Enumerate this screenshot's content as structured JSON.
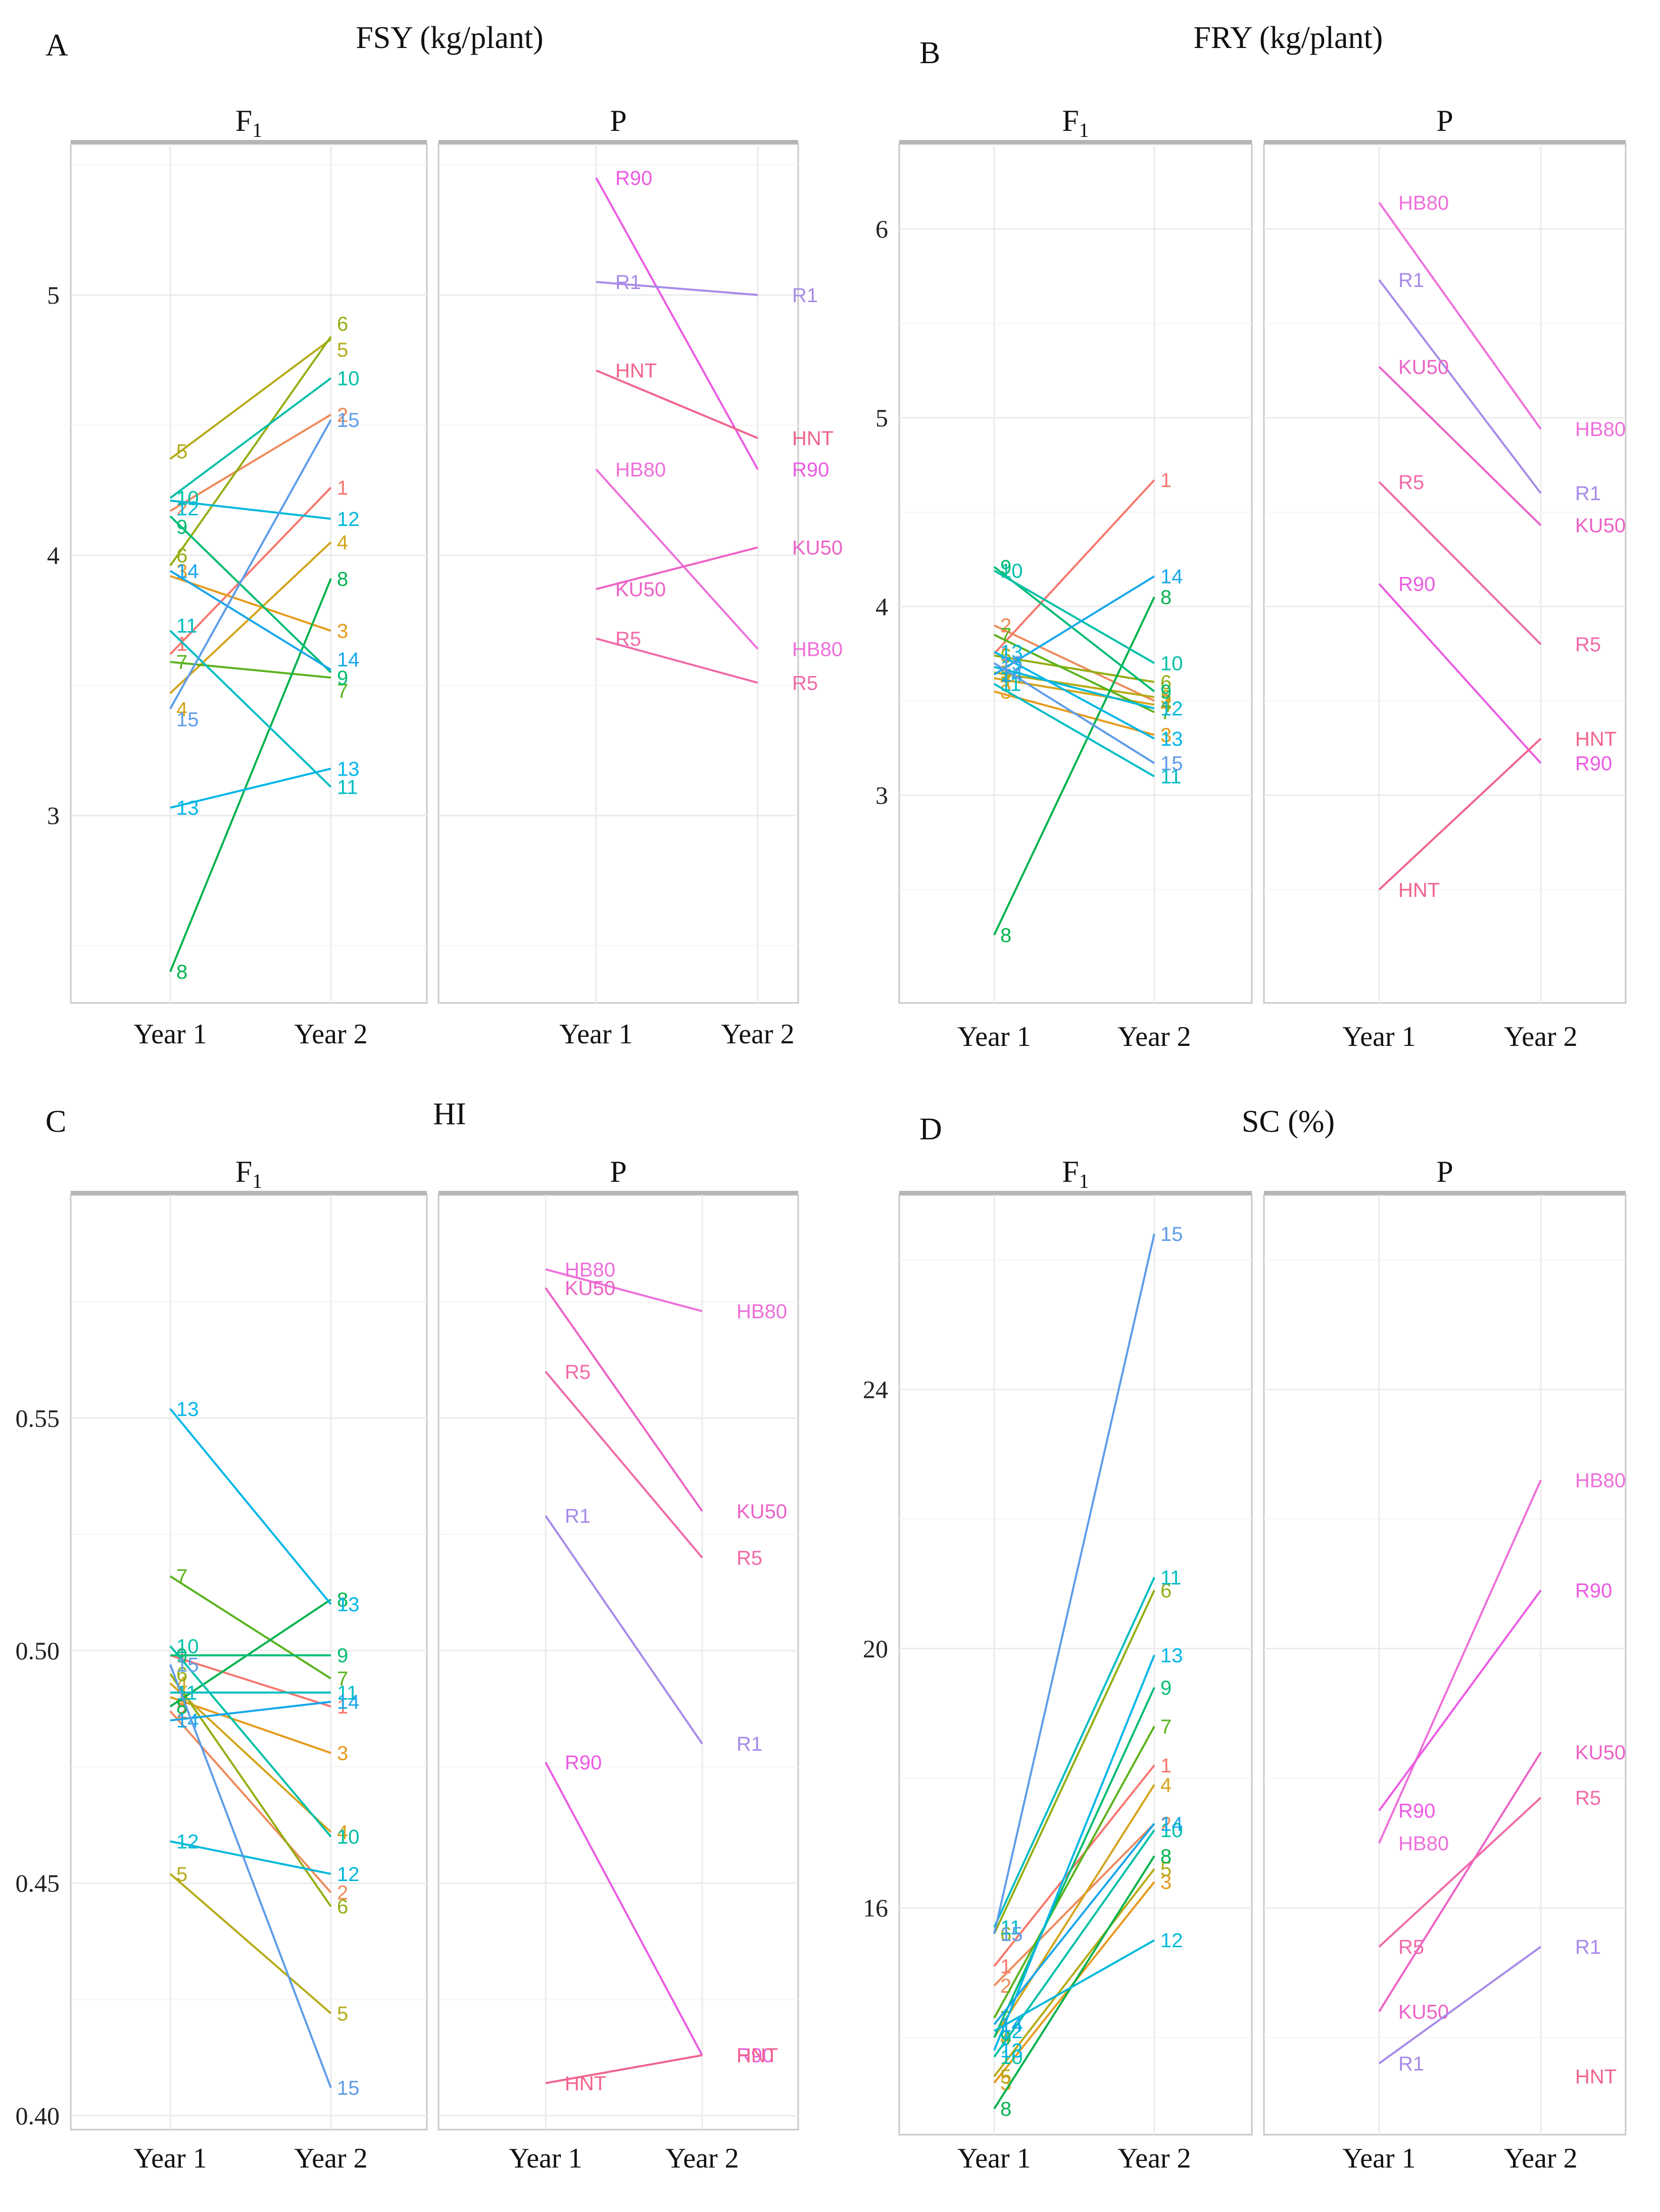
{
  "years": [
    "Year 1",
    "Year 2"
  ],
  "colors": {
    "parent_R90": "#EB5BE2",
    "parent_R1": "#A78AE8",
    "parent_HNT": "#F0648C",
    "parent_HB80": "#EE6FD9",
    "parent_KU50": "#EC62C6",
    "parent_R5": "#F06AA8",
    "gridline": "#EBEBEB",
    "strip": "#B5B5B5",
    "panel_border": "#C8C8C8"
  },
  "f1_colors": {
    "1": "#F8766D",
    "2": "#EF8A5C",
    "3": "#E69A1C",
    "4": "#D3A41B",
    "5": "#B5AA17",
    "6": "#93AE12",
    "7": "#5AB31E",
    "8": "#00B24C",
    "9": "#00BC73",
    "10": "#00C0A7",
    "11": "#00BDC4",
    "12": "#00B9DA",
    "13": "#00B6E9",
    "14": "#17A7EC",
    "15": "#5E9CE8"
  },
  "chart_data": [
    {
      "type": "line",
      "panel_letter": "A",
      "title": "FSY (kg/plant)",
      "facets": {
        "f1": "F1",
        "p": "P"
      },
      "yticks": [
        "3",
        "4",
        "5"
      ],
      "ylim": [
        2.28,
        5.58
      ],
      "series_f1": [
        {
          "name": "1",
          "values": [
            3.62,
            4.26
          ]
        },
        {
          "name": "2",
          "values": [
            4.17,
            4.54
          ]
        },
        {
          "name": "3",
          "values": [
            3.92,
            3.71
          ]
        },
        {
          "name": "4",
          "values": [
            3.47,
            4.05
          ]
        },
        {
          "name": "5",
          "values": [
            4.37,
            4.83
          ]
        },
        {
          "name": "6",
          "values": [
            3.96,
            4.84
          ]
        },
        {
          "name": "7",
          "values": [
            3.59,
            3.53
          ]
        },
        {
          "name": "8",
          "values": [
            2.4,
            3.91
          ]
        },
        {
          "name": "9",
          "values": [
            4.15,
            3.55
          ]
        },
        {
          "name": "10",
          "values": [
            4.22,
            4.68
          ]
        },
        {
          "name": "11",
          "values": [
            3.71,
            3.11
          ]
        },
        {
          "name": "12",
          "values": [
            4.21,
            4.14
          ]
        },
        {
          "name": "13",
          "values": [
            3.03,
            3.18
          ]
        },
        {
          "name": "14",
          "values": [
            3.94,
            3.56
          ]
        },
        {
          "name": "15",
          "values": [
            3.41,
            4.52
          ]
        }
      ],
      "series_p": [
        {
          "name": "R90",
          "values": [
            5.45,
            4.33
          ]
        },
        {
          "name": "R1",
          "values": [
            5.05,
            5.0
          ]
        },
        {
          "name": "HNT",
          "values": [
            4.71,
            4.45
          ]
        },
        {
          "name": "HB80",
          "values": [
            4.33,
            3.64
          ]
        },
        {
          "name": "KU50",
          "values": [
            3.87,
            4.03
          ]
        },
        {
          "name": "R5",
          "values": [
            3.68,
            3.51
          ]
        }
      ]
    },
    {
      "type": "line",
      "panel_letter": "B",
      "title": "FRY (kg/plant)",
      "facets": {
        "f1": "F1",
        "p": "P"
      },
      "yticks": [
        "3",
        "4",
        "5",
        "6"
      ],
      "ylim": [
        1.9,
        6.45
      ],
      "series_f1": [
        {
          "name": "1",
          "values": [
            3.75,
            4.67
          ]
        },
        {
          "name": "2",
          "values": [
            3.9,
            3.5
          ]
        },
        {
          "name": "3",
          "values": [
            3.55,
            3.32
          ]
        },
        {
          "name": "4",
          "values": [
            3.62,
            3.48
          ]
        },
        {
          "name": "5",
          "values": [
            3.65,
            3.52
          ]
        },
        {
          "name": "6",
          "values": [
            3.74,
            3.6
          ]
        },
        {
          "name": "7",
          "values": [
            3.85,
            3.44
          ]
        },
        {
          "name": "8",
          "values": [
            2.26,
            4.05
          ]
        },
        {
          "name": "9",
          "values": [
            4.21,
            3.55
          ]
        },
        {
          "name": "10",
          "values": [
            4.19,
            3.7
          ]
        },
        {
          "name": "11",
          "values": [
            3.59,
            3.1
          ]
        },
        {
          "name": "12",
          "values": [
            3.68,
            3.46
          ]
        },
        {
          "name": "13",
          "values": [
            3.76,
            3.3
          ]
        },
        {
          "name": "14",
          "values": [
            3.64,
            4.16
          ]
        },
        {
          "name": "15",
          "values": [
            3.7,
            3.17
          ]
        }
      ],
      "series_p": [
        {
          "name": "HB80",
          "values": [
            6.14,
            4.94
          ]
        },
        {
          "name": "R1",
          "values": [
            5.73,
            4.6
          ]
        },
        {
          "name": "KU50",
          "values": [
            5.27,
            4.43
          ]
        },
        {
          "name": "R5",
          "values": [
            4.66,
            3.8
          ]
        },
        {
          "name": "R90",
          "values": [
            4.12,
            3.17
          ]
        },
        {
          "name": "HNT",
          "values": [
            2.5,
            3.3
          ]
        }
      ]
    },
    {
      "type": "line",
      "panel_letter": "C",
      "title": "HI",
      "facets": {
        "f1": "F1",
        "p": "P"
      },
      "yticks": [
        "0.40",
        "0.45",
        "0.50",
        "0.55"
      ],
      "ylim": [
        0.397,
        0.598
      ],
      "series_f1": [
        {
          "name": "1",
          "values": [
            0.499,
            0.488
          ]
        },
        {
          "name": "2",
          "values": [
            0.487,
            0.448
          ]
        },
        {
          "name": "3",
          "values": [
            0.49,
            0.478
          ]
        },
        {
          "name": "4",
          "values": [
            0.493,
            0.461
          ]
        },
        {
          "name": "5",
          "values": [
            0.452,
            0.422
          ]
        },
        {
          "name": "6",
          "values": [
            0.495,
            0.445
          ]
        },
        {
          "name": "7",
          "values": [
            0.516,
            0.494
          ]
        },
        {
          "name": "8",
          "values": [
            0.488,
            0.511
          ]
        },
        {
          "name": "9",
          "values": [
            0.499,
            0.499
          ]
        },
        {
          "name": "10",
          "values": [
            0.501,
            0.46
          ]
        },
        {
          "name": "11",
          "values": [
            0.491,
            0.491
          ]
        },
        {
          "name": "12",
          "values": [
            0.459,
            0.452
          ]
        },
        {
          "name": "13",
          "values": [
            0.552,
            0.51
          ]
        },
        {
          "name": "14",
          "values": [
            0.485,
            0.489
          ]
        },
        {
          "name": "15",
          "values": [
            0.497,
            0.406
          ]
        }
      ],
      "series_p": [
        {
          "name": "HB80",
          "values": [
            0.582,
            0.573
          ]
        },
        {
          "name": "KU50",
          "values": [
            0.578,
            0.53
          ]
        },
        {
          "name": "R5",
          "values": [
            0.56,
            0.52
          ]
        },
        {
          "name": "R1",
          "values": [
            0.529,
            0.48
          ]
        },
        {
          "name": "R90",
          "values": [
            0.476,
            0.413
          ]
        },
        {
          "name": "HNT",
          "values": [
            0.407,
            0.413
          ]
        }
      ]
    },
    {
      "type": "line",
      "panel_letter": "D",
      "title": "SC (%)",
      "facets": {
        "f1": "F1",
        "p": "P"
      },
      "yticks": [
        "16",
        "20",
        "24"
      ],
      "ylim": [
        12.5,
        27.0
      ],
      "series_f1": [
        {
          "name": "1",
          "values": [
            15.1,
            18.2
          ]
        },
        {
          "name": "2",
          "values": [
            14.8,
            17.3
          ]
        },
        {
          "name": "3",
          "values": [
            13.3,
            16.4
          ]
        },
        {
          "name": "4",
          "values": [
            14.0,
            17.9
          ]
        },
        {
          "name": "5",
          "values": [
            13.4,
            16.6
          ]
        },
        {
          "name": "6",
          "values": [
            15.6,
            20.9
          ]
        },
        {
          "name": "7",
          "values": [
            14.3,
            18.8
          ]
        },
        {
          "name": "8",
          "values": [
            12.9,
            16.8
          ]
        },
        {
          "name": "9",
          "values": [
            14.0,
            19.4
          ]
        },
        {
          "name": "10",
          "values": [
            13.7,
            17.2
          ]
        },
        {
          "name": "11",
          "values": [
            15.7,
            21.1
          ]
        },
        {
          "name": "12",
          "values": [
            14.1,
            15.5
          ]
        },
        {
          "name": "13",
          "values": [
            13.8,
            19.9
          ]
        },
        {
          "name": "14",
          "values": [
            14.2,
            17.3
          ]
        },
        {
          "name": "15",
          "values": [
            15.6,
            26.4
          ]
        }
      ],
      "series_p": [
        {
          "name": "HB80",
          "values": [
            17.0,
            22.6
          ]
        },
        {
          "name": "R90",
          "values": [
            17.5,
            20.9
          ]
        },
        {
          "name": "KU50",
          "values": [
            14.4,
            18.4
          ]
        },
        {
          "name": "R5",
          "values": [
            15.4,
            17.7
          ]
        },
        {
          "name": "R1",
          "values": [
            13.6,
            15.4
          ]
        },
        {
          "name": "HNT",
          "values": [
            null,
            null
          ]
        }
      ]
    }
  ],
  "label_tweaks": {
    "A": {
      "f1_y1": {
        "1": 0.04,
        "2": 0.01,
        "12": -0.03,
        "9": -0.04,
        "6": 0.04,
        "5": 0.03,
        "4": -0.06,
        "3": 0.02,
        "7": 0.0,
        "14": 0.0,
        "11": 0.02,
        "15": -0.04
      },
      "f1_y2": {
        "5": -0.04,
        "6": 0.05,
        "9": -0.02,
        "7": -0.05,
        "14": 0.04
      },
      "p_y2": {
        "R1": 0.0
      }
    },
    "B": {
      "f1_y1": {},
      "f1_y2": {}
    },
    "C": {
      "f1_y1": {},
      "f1_y2": {}
    },
    "D": {
      "f1_y1": {},
      "f1_y2": {},
      "p_extra": {
        "HNT": 13.4
      }
    }
  }
}
